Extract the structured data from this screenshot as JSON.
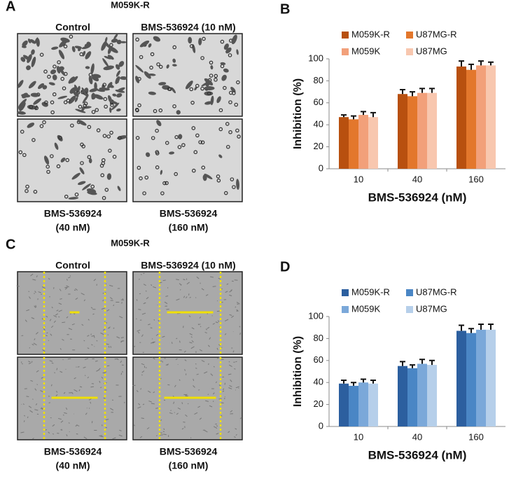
{
  "panels": [
    {
      "letter": "A",
      "title": "M059K-R",
      "captions": [
        "Control",
        "BMS-536924 (10 nM)"
      ],
      "bottom_captions": [
        [
          "BMS-536924",
          "(40 nM)"
        ],
        [
          "BMS-536924",
          "(160 nM)"
        ]
      ]
    },
    {
      "letter": "C",
      "title": "M059K-R",
      "captions": [
        "Control",
        "BMS-536924 (10 nM)"
      ],
      "bottom_captions": [
        [
          "BMS-536924",
          "(40 nM)"
        ],
        [
          "BMS-536924",
          "(160 nM)"
        ]
      ]
    }
  ],
  "chart_data": [
    {
      "type": "bar",
      "panel_label": "B",
      "x_label": "BMS-536924 (nM)",
      "y_label": "Inhibition (%)",
      "categories": [
        "10",
        "40",
        "160"
      ],
      "series": [
        {
          "name": "M059K-R",
          "color": "#b8500f",
          "values": [
            47,
            68,
            93
          ],
          "errors": [
            2,
            4,
            5
          ]
        },
        {
          "name": "U87MG-R",
          "color": "#e3772c",
          "values": [
            45,
            66,
            90
          ],
          "errors": [
            3,
            4,
            5
          ]
        },
        {
          "name": "M059K",
          "color": "#f2a07a",
          "values": [
            49,
            69,
            94
          ],
          "errors": [
            3,
            4,
            4
          ]
        },
        {
          "name": "U87MG",
          "color": "#f8c7af",
          "values": [
            47,
            69,
            94
          ],
          "errors": [
            4,
            4,
            3
          ]
        }
      ],
      "ylim": [
        0,
        100
      ],
      "yticks": [
        0,
        20,
        40,
        60,
        80,
        100
      ]
    },
    {
      "type": "bar",
      "panel_label": "D",
      "x_label": "BMS-536924 (nM)",
      "y_label": "Inhibition (%)",
      "categories": [
        "10",
        "40",
        "160"
      ],
      "series": [
        {
          "name": "M059K-R",
          "color": "#2c5f9f",
          "values": [
            39,
            55,
            87
          ],
          "errors": [
            3,
            4,
            5
          ]
        },
        {
          "name": "U87MG-R",
          "color": "#4a86c5",
          "values": [
            37,
            53,
            85
          ],
          "errors": [
            3,
            3,
            4
          ]
        },
        {
          "name": "M059K",
          "color": "#7ba8d9",
          "values": [
            40,
            57,
            88
          ],
          "errors": [
            3,
            4,
            5
          ]
        },
        {
          "name": "U87MG",
          "color": "#b6cfea",
          "values": [
            39,
            56,
            88
          ],
          "errors": [
            3,
            4,
            5
          ]
        }
      ],
      "ylim": [
        0,
        100
      ],
      "yticks": [
        0,
        20,
        40,
        60,
        80,
        100
      ]
    }
  ]
}
